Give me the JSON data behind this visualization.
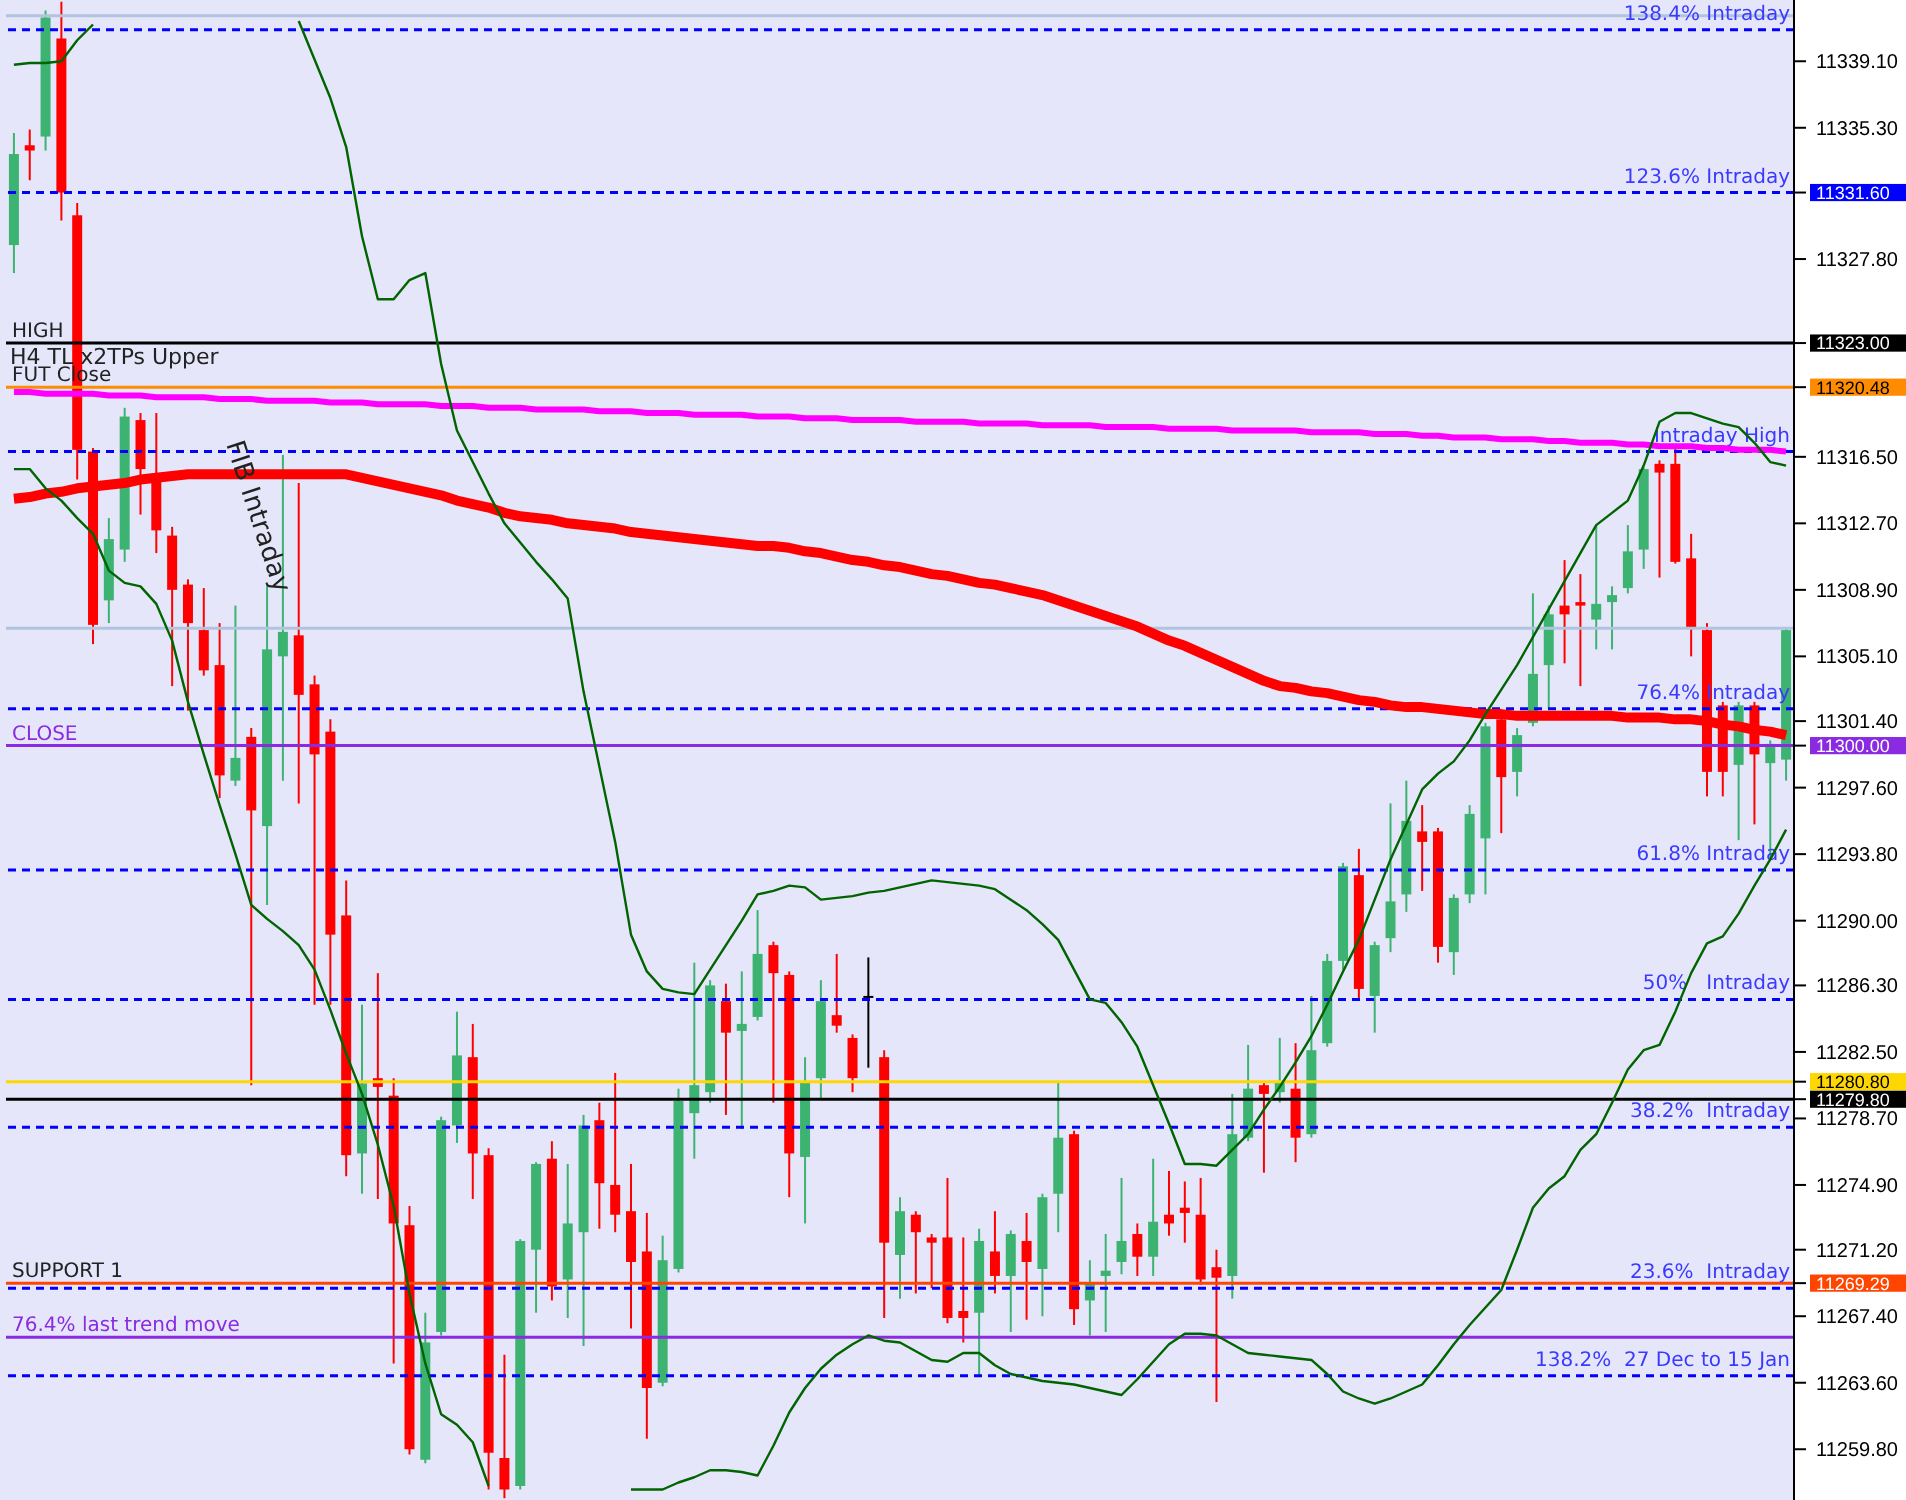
{
  "chart_data": {
    "type": "candlestick",
    "tick_labels": "y",
    "annotations": [
      "H4 TL x2TPs Upper",
      "FIB Intraday"
    ],
    "categories": [
      null,
      null,
      null,
      null,
      null,
      null,
      null,
      null,
      null,
      null,
      null,
      null,
      null,
      null,
      null,
      null,
      null,
      null,
      null,
      null,
      null,
      null,
      null,
      null,
      null,
      null,
      null,
      null,
      null,
      null,
      null,
      null,
      null,
      null,
      null,
      null,
      null,
      null,
      null,
      null,
      null,
      null,
      null,
      null,
      null,
      null,
      null,
      null,
      null,
      null,
      null,
      null,
      null,
      null,
      null,
      null,
      null,
      null,
      null,
      null,
      null,
      null,
      null,
      null,
      null,
      null,
      null,
      null,
      null,
      null,
      null,
      null,
      null,
      null,
      null,
      null,
      null,
      null,
      null,
      null,
      null,
      null,
      null,
      null,
      null,
      null,
      null,
      null,
      null,
      null,
      null,
      null,
      null,
      null,
      null,
      null,
      null,
      null,
      null,
      null,
      null,
      null,
      null,
      null,
      null,
      null,
      null,
      null,
      null,
      null,
      null,
      null,
      null
    ],
    "ohlc": [
      [
        11328.6,
        11335.0,
        11327.0,
        11333.8
      ],
      [
        11334.3,
        11335.2,
        11332.3,
        11334.0
      ],
      [
        11334.8,
        11342.0,
        11334.0,
        11341.6
      ],
      [
        11340.4,
        11342.5,
        11330.0,
        11331.6
      ],
      [
        11330.3,
        11331.0,
        11315.2,
        11316.9
      ],
      [
        11316.8,
        11317.0,
        11305.8,
        11306.9
      ],
      [
        11308.3,
        11313.0,
        11307.0,
        11311.8
      ],
      [
        11311.2,
        11319.3,
        11310.5,
        11318.8
      ],
      [
        11318.6,
        11319.0,
        11313.2,
        11315.8
      ],
      [
        11315.3,
        11319.0,
        11311.0,
        11312.3
      ],
      [
        11312.0,
        11312.5,
        11303.4,
        11308.9
      ],
      [
        11309.2,
        11309.5,
        11302.0,
        11307.0
      ],
      [
        11306.6,
        11309.0,
        11304.0,
        11304.3
      ],
      [
        11304.6,
        11307.0,
        11297.0,
        11298.3
      ],
      [
        11298.0,
        11308.0,
        11297.7,
        11299.3
      ],
      [
        11300.5,
        11301.0,
        11280.6,
        11296.3
      ],
      [
        11295.4,
        11309.1,
        11290.9,
        11305.5
      ],
      [
        11305.1,
        11316.6,
        11298.0,
        11306.5
      ],
      [
        11306.3,
        11315.0,
        11296.7,
        11302.9
      ],
      [
        11303.5,
        11304.0,
        11285.2,
        11299.5
      ],
      [
        11300.8,
        11301.5,
        11285.2,
        11289.2
      ],
      [
        11290.3,
        11292.3,
        11275.4,
        11276.6
      ],
      [
        11276.7,
        11285.2,
        11274.4,
        11280.7
      ],
      [
        11281.0,
        11287.0,
        11274.1,
        11280.5
      ],
      [
        11280.0,
        11281.0,
        11264.7,
        11272.7
      ],
      [
        11272.6,
        11273.7,
        11259.5,
        11259.8
      ],
      [
        11259.2,
        11267.6,
        11259.0,
        11265.9
      ],
      [
        11266.5,
        11278.8,
        11266.3,
        11278.6
      ],
      [
        11278.3,
        11284.8,
        11277.3,
        11282.3
      ],
      [
        11282.2,
        11284.1,
        11274.1,
        11276.7
      ],
      [
        11276.6,
        11277.0,
        11257.5,
        11259.6
      ],
      [
        11259.3,
        11265.2,
        11257.0,
        11257.5
      ],
      [
        11257.7,
        11271.8,
        11257.5,
        11271.7
      ],
      [
        11271.2,
        11276.2,
        11267.6,
        11276.1
      ],
      [
        11276.4,
        11277.4,
        11268.3,
        11269.1
      ],
      [
        11269.5,
        11276.1,
        11267.3,
        11272.7
      ],
      [
        11272.2,
        11278.9,
        11265.7,
        11278.3
      ],
      [
        11278.6,
        11279.6,
        11272.4,
        11275.0
      ],
      [
        11274.9,
        11281.3,
        11272.2,
        11273.2
      ],
      [
        11273.4,
        11276.1,
        11266.7,
        11270.5
      ],
      [
        11271.1,
        11273.3,
        11260.4,
        11263.3
      ],
      [
        11263.6,
        11272.0,
        11263.4,
        11270.6
      ],
      [
        11270.1,
        11280.4,
        11269.9,
        11279.7
      ],
      [
        11279.0,
        11287.6,
        11276.4,
        11280.6
      ],
      [
        11280.2,
        11286.6,
        11279.6,
        11286.3
      ],
      [
        11285.4,
        11286.4,
        11278.9,
        11283.6
      ],
      [
        11283.7,
        11287.1,
        11278.1,
        11284.1
      ],
      [
        11284.5,
        11290.6,
        11284.3,
        11288.1
      ],
      [
        11288.6,
        11288.8,
        11279.6,
        11287.0
      ],
      [
        11286.9,
        11287.1,
        11274.2,
        11276.7
      ],
      [
        11276.5,
        11282.2,
        11272.7,
        11280.8
      ],
      [
        11281.0,
        11286.6,
        11279.8,
        11285.4
      ],
      [
        11284.6,
        11288.1,
        11283.6,
        11284.0
      ],
      [
        11283.3,
        11283.5,
        11280.2,
        11281.0
      ],
      [
        11285.7,
        11287.9,
        11281.6,
        11285.6
      ],
      [
        11282.2,
        11282.6,
        11267.3,
        11271.6
      ],
      [
        11270.9,
        11274.2,
        11268.4,
        11273.4
      ],
      [
        11273.2,
        11273.4,
        11268.7,
        11272.2
      ],
      [
        11271.9,
        11272.1,
        11269.0,
        11271.6
      ],
      [
        11271.9,
        11275.3,
        11267.0,
        11267.3
      ],
      [
        11267.7,
        11271.9,
        11265.9,
        11267.3
      ],
      [
        11267.6,
        11272.4,
        11264.0,
        11271.7
      ],
      [
        11271.1,
        11273.4,
        11268.7,
        11269.7
      ],
      [
        11269.7,
        11272.3,
        11266.5,
        11272.1
      ],
      [
        11271.7,
        11273.3,
        11267.2,
        11270.5
      ],
      [
        11270.1,
        11274.4,
        11267.4,
        11274.2
      ],
      [
        11274.4,
        11280.8,
        11272.2,
        11277.6
      ],
      [
        11277.8,
        11278.0,
        11266.9,
        11267.8
      ],
      [
        11268.3,
        11270.6,
        11266.3,
        11269.3
      ],
      [
        11269.7,
        11272.1,
        11266.5,
        11270.0
      ],
      [
        11270.5,
        11275.3,
        11269.8,
        11271.7
      ],
      [
        11272.1,
        11272.7,
        11269.7,
        11270.8
      ],
      [
        11270.8,
        11276.4,
        11269.7,
        11272.8
      ],
      [
        11273.2,
        11275.7,
        11272.0,
        11272.7
      ],
      [
        11273.6,
        11275.1,
        11271.6,
        11273.3
      ],
      [
        11273.2,
        11275.3,
        11269.2,
        11269.5
      ],
      [
        11270.2,
        11271.2,
        11262.5,
        11269.6
      ],
      [
        11269.7,
        11280.1,
        11268.4,
        11277.8
      ],
      [
        11277.6,
        11282.9,
        11277.4,
        11280.4
      ],
      [
        11280.6,
        11280.8,
        11275.6,
        11280.1
      ],
      [
        11280.2,
        11283.3,
        11279.6,
        11280.8
      ],
      [
        11280.4,
        11283.0,
        11276.2,
        11277.6
      ],
      [
        11277.8,
        11285.7,
        11277.6,
        11282.6
      ],
      [
        11283.0,
        11288.1,
        11282.8,
        11287.7
      ],
      [
        11287.7,
        11293.3,
        11287.2,
        11293.1
      ],
      [
        11292.6,
        11294.1,
        11285.5,
        11286.1
      ],
      [
        11285.7,
        11288.8,
        11283.6,
        11288.6
      ],
      [
        11289.0,
        11296.7,
        11288.2,
        11291.1
      ],
      [
        11291.5,
        11298.0,
        11290.5,
        11295.7
      ],
      [
        11295.1,
        11296.6,
        11291.7,
        11294.5
      ],
      [
        11295.1,
        11295.3,
        11287.6,
        11288.5
      ],
      [
        11288.2,
        11291.5,
        11286.9,
        11291.3
      ],
      [
        11291.5,
        11296.6,
        11291.0,
        11296.1
      ],
      [
        11294.7,
        11301.3,
        11291.5,
        11301.1
      ],
      [
        11301.5,
        11301.8,
        11295.0,
        11298.2
      ],
      [
        11298.5,
        11301.0,
        11297.1,
        11300.6
      ],
      [
        11301.3,
        11308.7,
        11301.1,
        11304.1
      ],
      [
        11304.6,
        11308.0,
        11302.1,
        11307.5
      ],
      [
        11308.0,
        11310.6,
        11304.7,
        11307.5
      ],
      [
        11308.2,
        11309.8,
        11303.4,
        11308.0
      ],
      [
        11307.2,
        11312.6,
        11305.5,
        11308.1
      ],
      [
        11308.2,
        11309.1,
        11305.5,
        11308.6
      ],
      [
        11309.0,
        11312.6,
        11308.7,
        11311.1
      ],
      [
        11311.2,
        11315.9,
        11310.1,
        11315.8
      ],
      [
        11316.1,
        11316.3,
        11309.6,
        11315.6
      ],
      [
        11316.1,
        11317.1,
        11310.4,
        11310.5
      ],
      [
        11310.7,
        11312.1,
        11305.1,
        11306.7
      ],
      [
        11306.6,
        11307.0,
        11297.1,
        11298.5
      ],
      [
        11302.3,
        11302.5,
        11297.1,
        11298.5
      ],
      [
        11298.9,
        11302.5,
        11294.6,
        11302.3
      ],
      [
        11302.3,
        11302.5,
        11295.5,
        11299.5
      ],
      [
        11299.0,
        11300.3,
        11293.5,
        11300.1
      ],
      [
        11299.2,
        11306.7,
        11298.0,
        11306.6
      ]
    ],
    "colors": [
      "#3cb371",
      "#ff0000",
      "#3cb371",
      "#ff0000",
      "#ff0000",
      "#ff0000",
      "#3cb371",
      "#3cb371",
      "#ff0000",
      "#ff0000",
      "#ff0000",
      "#ff0000",
      "#ff0000",
      "#ff0000",
      "#3cb371",
      "#ff0000",
      "#3cb371",
      "#3cb371",
      "#ff0000",
      "#ff0000",
      "#ff0000",
      "#ff0000",
      "#3cb371",
      "#ff0000",
      "#ff0000",
      "#ff0000",
      "#3cb371",
      "#3cb371",
      "#3cb371",
      "#ff0000",
      "#ff0000",
      "#ff0000",
      "#3cb371",
      "#3cb371",
      "#ff0000",
      "#3cb371",
      "#3cb371",
      "#ff0000",
      "#ff0000",
      "#ff0000",
      "#ff0000",
      "#3cb371",
      "#3cb371",
      "#3cb371",
      "#3cb371",
      "#ff0000",
      "#3cb371",
      "#3cb371",
      "#ff0000",
      "#ff0000",
      "#3cb371",
      "#3cb371",
      "#ff0000",
      "#ff0000",
      "#000000",
      "#ff0000",
      "#3cb371",
      "#ff0000",
      "#ff0000",
      "#ff0000",
      "#ff0000",
      "#3cb371",
      "#ff0000",
      "#3cb371",
      "#ff0000",
      "#3cb371",
      "#3cb371",
      "#ff0000",
      "#3cb371",
      "#3cb371",
      "#3cb371",
      "#ff0000",
      "#3cb371",
      "#ff0000",
      "#ff0000",
      "#ff0000",
      "#ff0000",
      "#3cb371",
      "#3cb371",
      "#ff0000",
      "#3cb371",
      "#ff0000",
      "#3cb371",
      "#3cb371",
      "#3cb371",
      "#ff0000",
      "#3cb371",
      "#3cb371",
      "#3cb371",
      "#ff0000",
      "#ff0000",
      "#3cb371",
      "#3cb371",
      "#3cb371",
      "#ff0000",
      "#3cb371",
      "#3cb371",
      "#3cb371",
      "#ff0000",
      "#ff0000",
      "#3cb371",
      "#3cb371",
      "#3cb371",
      "#3cb371",
      "#ff0000",
      "#ff0000",
      "#ff0000",
      "#ff0000",
      "#ff0000",
      "#3cb371",
      "#ff0000",
      "#3cb371",
      "#3cb371"
    ],
    "series": [
      {
        "type": "line",
        "color": "#ff0000",
        "values": [
          11314.1,
          11314.2,
          11314.4,
          11314.5,
          11314.7,
          11314.8,
          11314.9,
          11315.0,
          11315.2,
          11315.3,
          11315.4,
          11315.5,
          11315.5,
          11315.5,
          11315.5,
          11315.5,
          11315.5,
          11315.5,
          11315.5,
          11315.5,
          11315.5,
          11315.5,
          11315.3,
          11315.1,
          11314.9,
          11314.7,
          11314.5,
          11314.3,
          11314.0,
          11313.8,
          11313.6,
          11313.3,
          11313.1,
          11313.0,
          11312.9,
          11312.7,
          11312.6,
          11312.5,
          11312.4,
          11312.2,
          11312.1,
          11312.0,
          11311.9,
          11311.8,
          11311.7,
          11311.6,
          11311.5,
          11311.4,
          11311.4,
          11311.3,
          11311.1,
          11311.0,
          11310.8,
          11310.6,
          11310.5,
          11310.3,
          11310.2,
          11310.0,
          11309.8,
          11309.7,
          11309.5,
          11309.3,
          11309.2,
          11309.0,
          11308.8,
          11308.6,
          11308.3,
          11308.0,
          11307.7,
          11307.4,
          11307.1,
          11306.8,
          11306.4,
          11306.0,
          11305.7,
          11305.3,
          11304.9,
          11304.5,
          11304.1,
          11303.7,
          11303.4,
          11303.3,
          11303.1,
          11303.0,
          11302.8,
          11302.6,
          11302.5,
          11302.3,
          11302.2,
          11302.2,
          11302.1,
          11302.0,
          11301.9,
          11301.8,
          11301.8,
          11301.7,
          11301.7,
          11301.7,
          11301.7,
          11301.7,
          11301.7,
          11301.7,
          11301.6,
          11301.6,
          11301.6,
          11301.5,
          11301.5,
          11301.4,
          11301.2,
          11301.1,
          11300.9,
          11300.8,
          11300.6
        ]
      },
      {
        "type": "line",
        "color": "#ff00ff",
        "values": [
          11320.2,
          11320.2,
          11320.1,
          11320.1,
          11320.1,
          11320.1,
          11320.0,
          11320.0,
          11320.0,
          11319.9,
          11319.9,
          11319.9,
          11319.9,
          11319.8,
          11319.8,
          11319.8,
          11319.7,
          11319.7,
          11319.7,
          11319.7,
          11319.6,
          11319.6,
          11319.6,
          11319.5,
          11319.5,
          11319.5,
          11319.5,
          11319.4,
          11319.4,
          11319.4,
          11319.3,
          11319.3,
          11319.3,
          11319.2,
          11319.2,
          11319.2,
          11319.2,
          11319.1,
          11319.1,
          11319.1,
          11319.0,
          11319.0,
          11319.0,
          11318.9,
          11318.9,
          11318.9,
          11318.9,
          11318.8,
          11318.8,
          11318.8,
          11318.7,
          11318.7,
          11318.7,
          11318.6,
          11318.6,
          11318.6,
          11318.6,
          11318.5,
          11318.5,
          11318.5,
          11318.5,
          11318.4,
          11318.4,
          11318.4,
          11318.4,
          11318.3,
          11318.3,
          11318.3,
          11318.3,
          11318.2,
          11318.2,
          11318.2,
          11318.2,
          11318.1,
          11318.1,
          11318.1,
          11318.1,
          11318.0,
          11318.0,
          11318.0,
          11318.0,
          11318.0,
          11317.9,
          11317.9,
          11317.9,
          11317.9,
          11317.8,
          11317.8,
          11317.8,
          11317.7,
          11317.7,
          11317.6,
          11317.6,
          11317.6,
          11317.5,
          11317.5,
          11317.5,
          11317.4,
          11317.4,
          11317.3,
          11317.3,
          11317.3,
          11317.2,
          11317.2,
          11317.1,
          11317.1,
          11317.1,
          11317.0,
          11317.0,
          11316.9,
          11316.9,
          11316.9,
          11316.8
        ]
      },
      {
        "type": "line",
        "color": "#006400",
        "values": [
          11338.9,
          11339.0,
          11339.0,
          11339.1,
          11340.3,
          11341.2,
          null,
          null,
          null,
          null,
          null,
          null,
          null,
          null,
          null,
          null,
          null,
          null,
          11341.4,
          11339.2,
          11337.0,
          11334.2,
          11329.1,
          11325.5,
          11325.5,
          11326.6,
          11327.0,
          11321.8,
          11318.0,
          11316.2,
          11314.4,
          11312.7,
          11311.6,
          11310.5,
          11309.5,
          11308.4,
          11303.1,
          11298.8,
          11294.5,
          11289.2,
          11287.1,
          11286.1,
          11285.9,
          11285.8,
          11287.2,
          11288.6,
          11290.0,
          11291.5,
          11291.7,
          11292.0,
          11291.9,
          11291.2,
          11291.3,
          11291.4,
          11291.6,
          11291.7,
          11291.9,
          11292.1,
          11292.3,
          11292.2,
          11292.1,
          11292.0,
          11291.8,
          11291.2,
          11290.6,
          11289.8,
          11288.9,
          11287.2,
          11285.5,
          11285.3,
          11284.2,
          11282.8,
          11280.6,
          11278.4,
          11276.1,
          11276.1,
          11276.0,
          11276.9,
          11277.8,
          11279.2,
          11280.5,
          11281.9,
          11283.4,
          11285.2,
          11287.1,
          11288.9,
          11291.2,
          11293.5,
          11295.5,
          11297.5,
          11298.4,
          11299.1,
          11300.3,
          11301.8,
          11303.2,
          11304.6,
          11306.2,
          11307.8,
          11309.4,
          11311.0,
          11312.6,
          11313.3,
          11314.0,
          11316.0,
          11318.5,
          11319.0,
          11319.0,
          11318.7,
          11318.4,
          11318.2,
          11317.3,
          11316.2,
          11316.0
        ]
      },
      {
        "type": "line",
        "color": "#006400",
        "values": [
          11315.8,
          11315.8,
          11314.7,
          11314.0,
          11313.0,
          11312.1,
          11310.0,
          11309.3,
          11309.1,
          11308.1,
          11306.0,
          11302.5,
          11299.5,
          11296.6,
          11293.8,
          11290.9,
          11290.1,
          11289.4,
          11288.6,
          11287.2,
          11284.9,
          11282.4,
          11280.1,
          11277.2,
          11273.7,
          11268.7,
          11264.7,
          11261.8,
          11261.2,
          11260.2,
          11257.7,
          null,
          null,
          null,
          null,
          null,
          null,
          null,
          null,
          11257.5,
          11257.5,
          11257.5,
          11257.9,
          11258.2,
          11258.6,
          11258.6,
          11258.5,
          11258.3,
          11260.0,
          11261.9,
          11263.3,
          11264.4,
          11265.2,
          11265.8,
          11266.3,
          11266.0,
          11265.9,
          11265.4,
          11264.9,
          11264.8,
          11265.3,
          11265.3,
          11264.6,
          11264.1,
          11263.9,
          11263.7,
          11263.6,
          11263.5,
          11263.3,
          11263.1,
          11262.9,
          11263.8,
          11264.8,
          11265.8,
          11266.4,
          11266.4,
          11266.3,
          11265.8,
          11265.3,
          11265.2,
          11265.1,
          11265.0,
          11264.9,
          11264.1,
          11263.1,
          11262.7,
          11262.4,
          11262.7,
          11263.1,
          11263.5,
          11264.6,
          11265.8,
          11266.9,
          11267.9,
          11268.9,
          11271.2,
          11273.6,
          11274.7,
          11275.4,
          11276.9,
          11277.8,
          11279.6,
          11281.5,
          11282.6,
          11282.9,
          11284.8,
          11287.0,
          11288.7,
          11289.1,
          11290.4,
          11292.0,
          11293.5,
          11295.2
        ]
      }
    ],
    "ylim": [
      11256.9,
      11342.6
    ],
    "yticks": [
      {
        "value": 11259.8,
        "label": "11259.80"
      },
      {
        "value": 11263.6,
        "label": "11263.60"
      },
      {
        "value": 11267.4,
        "label": "11267.40"
      },
      {
        "value": 11269.29,
        "label": "11269.29"
      },
      {
        "value": 11271.2,
        "label": "11271.20"
      },
      {
        "value": 11274.9,
        "label": "11274.90"
      },
      {
        "value": 11278.7,
        "label": "11278.70"
      },
      {
        "value": 11279.8,
        "label": "11279.80"
      },
      {
        "value": 11280.8,
        "label": "11280.80"
      },
      {
        "value": 11282.5,
        "label": "11282.50"
      },
      {
        "value": 11286.3,
        "label": "11286.30"
      },
      {
        "value": 11290.0,
        "label": "11290.00"
      },
      {
        "value": 11293.8,
        "label": "11293.80"
      },
      {
        "value": 11297.6,
        "label": "11297.60"
      },
      {
        "value": 11300.0,
        "label": "11300.00"
      },
      {
        "value": 11301.4,
        "label": "11301.40"
      },
      {
        "value": 11305.1,
        "label": "11305.10"
      },
      {
        "value": 11308.9,
        "label": "11308.90"
      },
      {
        "value": 11312.7,
        "label": "11312.70"
      },
      {
        "value": 11316.5,
        "label": "11316.50"
      },
      {
        "value": 11320.48,
        "label": "11320.48"
      },
      {
        "value": 11323.0,
        "label": "11323.00"
      },
      {
        "value": 11327.8,
        "label": "11327.80"
      },
      {
        "value": 11331.6,
        "label": "11331.60"
      },
      {
        "value": 11335.3,
        "label": "11335.30"
      },
      {
        "value": 11339.1,
        "label": "11339.10"
      }
    ],
    "ref_lines": [
      {
        "axis": "y",
        "value": 11341.7,
        "label": null,
        "color": "#b0c4de",
        "line_style": "solid"
      },
      {
        "axis": "y",
        "value": 11340.9,
        "label": "138.4% Intraday",
        "color": "#0000ff",
        "line_style": "dashed"
      },
      {
        "axis": "y",
        "value": 11331.6,
        "label": "123.6% Intraday",
        "color": "#0000ff",
        "line_style": "dashed"
      },
      {
        "axis": "y",
        "value": 11323.0,
        "label": "HIGH",
        "color": "#000000",
        "line_style": "solid"
      },
      {
        "axis": "y",
        "value": 11320.48,
        "label": "FUT Close",
        "color": "#ff8c00",
        "line_style": "solid"
      },
      {
        "axis": "y",
        "value": 11316.8,
        "label": "Intraday High",
        "color": "#0000ff",
        "line_style": "dashed"
      },
      {
        "axis": "y",
        "value": 11306.7,
        "label": null,
        "color": "#b0c4de",
        "line_style": "solid"
      },
      {
        "axis": "y",
        "value": 11302.1,
        "label": "76.4% Intraday",
        "color": "#0000ff",
        "line_style": "dashed"
      },
      {
        "axis": "y",
        "value": 11300.0,
        "label": "CLOSE",
        "color": "#8a2be2",
        "line_style": "solid"
      },
      {
        "axis": "y",
        "value": 11292.9,
        "label": "61.8% Intraday",
        "color": "#0000ff",
        "line_style": "dashed"
      },
      {
        "axis": "y",
        "value": 11285.5,
        "label": "50%   Intraday",
        "color": "#0000ff",
        "line_style": "dashed"
      },
      {
        "axis": "y",
        "value": 11280.8,
        "label": null,
        "color": "#ffd700",
        "line_style": "solid"
      },
      {
        "axis": "y",
        "value": 11279.8,
        "label": null,
        "color": "#000000",
        "line_style": "solid"
      },
      {
        "axis": "y",
        "value": 11278.2,
        "label": "38.2%  Intraday",
        "color": "#0000ff",
        "line_style": "dashed"
      },
      {
        "axis": "y",
        "value": 11269.29,
        "label": "SUPPORT 1",
        "color": "#ff4500",
        "line_style": "solid"
      },
      {
        "axis": "y",
        "value": 11269.0,
        "label": "23.6%  Intraday",
        "color": "#0000ff",
        "line_style": "dashed"
      },
      {
        "axis": "y",
        "value": 11266.2,
        "label": "76.4% last trend move",
        "color": "#8a2be2",
        "line_style": "solid"
      },
      {
        "axis": "y",
        "value": 11264.0,
        "label": "138.2%  27 Dec to 15 Jan",
        "color": "#0000ff",
        "line_style": "dashed"
      }
    ]
  }
}
